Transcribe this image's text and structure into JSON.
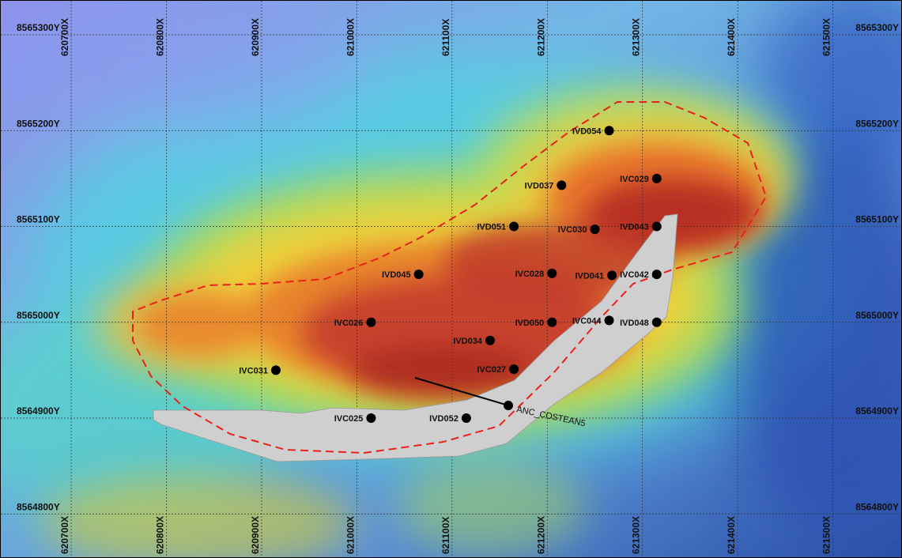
{
  "map": {
    "colors": {
      "background_base": "#7fa8e6",
      "boundary_line": "#e8221b",
      "trench_fill": "#cfcfcf",
      "drillhole_marker": "#000000"
    },
    "easting_labels": [
      {
        "text": "620700X",
        "value": 620700
      },
      {
        "text": "620800X",
        "value": 620800
      },
      {
        "text": "620900X",
        "value": 620900
      },
      {
        "text": "621000X",
        "value": 621000
      },
      {
        "text": "621100X",
        "value": 621100
      },
      {
        "text": "621200X",
        "value": 621200
      },
      {
        "text": "621300X",
        "value": 621300
      },
      {
        "text": "621400X",
        "value": 621400
      },
      {
        "text": "621500X",
        "value": 621500
      }
    ],
    "northing_labels": [
      {
        "text": "8565300Y",
        "value": 8565300
      },
      {
        "text": "8565200Y",
        "value": 8565200
      },
      {
        "text": "8565100Y",
        "value": 8565100
      },
      {
        "text": "8565000Y",
        "value": 8565000
      },
      {
        "text": "8564900Y",
        "value": 8564900
      },
      {
        "text": "8564800Y",
        "value": 8564800
      }
    ],
    "drillholes": [
      {
        "label": "IVD054",
        "e": 621265,
        "n": 8565200
      },
      {
        "label": "IVC029",
        "e": 621315,
        "n": 8565150
      },
      {
        "label": "IVD037",
        "e": 621215,
        "n": 8565143
      },
      {
        "label": "IVD051",
        "e": 621165,
        "n": 8565100
      },
      {
        "label": "IVC030",
        "e": 621250,
        "n": 8565097
      },
      {
        "label": "IVD043",
        "e": 621315,
        "n": 8565100
      },
      {
        "label": "IVD045",
        "e": 621065,
        "n": 8565050
      },
      {
        "label": "IVC028",
        "e": 621205,
        "n": 8565051
      },
      {
        "label": "IVD041",
        "e": 621268,
        "n": 8565049
      },
      {
        "label": "IVC042",
        "e": 621315,
        "n": 8565050
      },
      {
        "label": "IVC026",
        "e": 621015,
        "n": 8565000
      },
      {
        "label": "IVD050",
        "e": 621205,
        "n": 8565000
      },
      {
        "label": "IVC044",
        "e": 621265,
        "n": 8565002
      },
      {
        "label": "IVD048",
        "e": 621315,
        "n": 8565000
      },
      {
        "label": "IVD034",
        "e": 621140,
        "n": 8564981
      },
      {
        "label": "IVC031",
        "e": 620915,
        "n": 8564950
      },
      {
        "label": "IVC027",
        "e": 621165,
        "n": 8564951
      },
      {
        "label": "IVC025",
        "e": 621015,
        "n": 8564900
      },
      {
        "label": "IVD052",
        "e": 621115,
        "n": 8564900
      }
    ],
    "trench": {
      "label": "ANC_COSTEAN5"
    }
  }
}
